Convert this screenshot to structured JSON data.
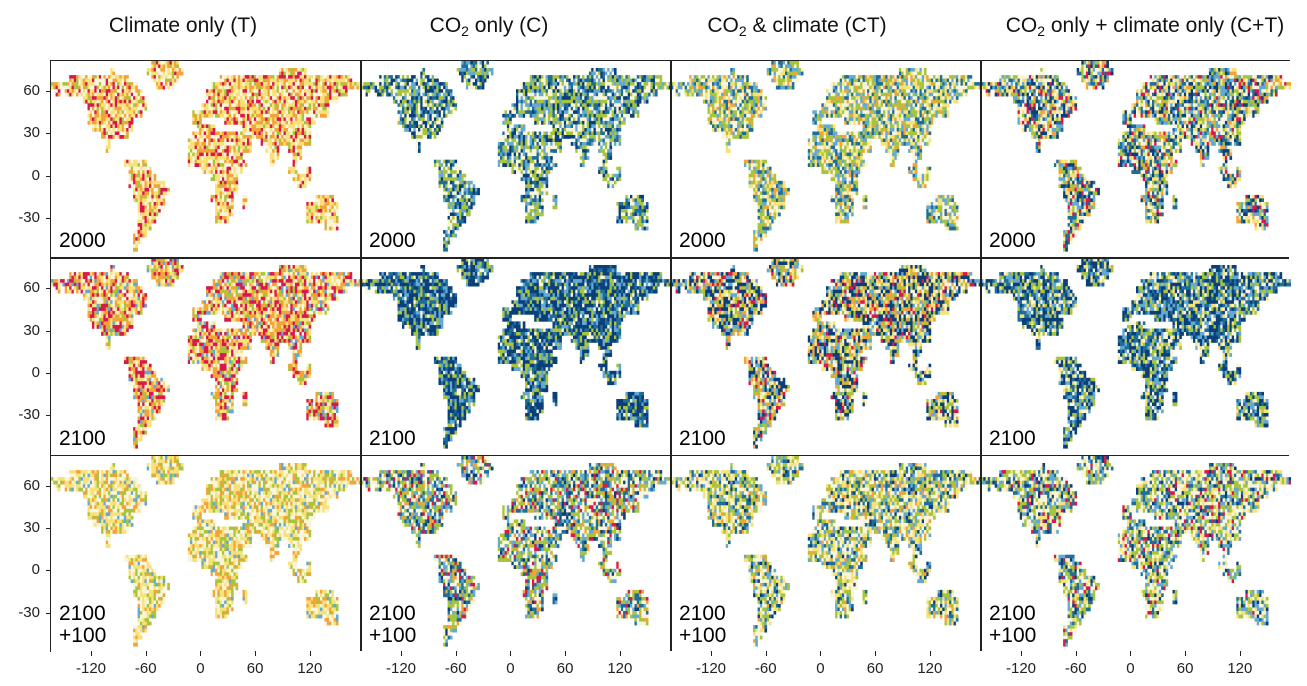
{
  "columns": [
    {
      "title_main": "Climate only  (T)",
      "title_sub": "",
      "title_rest": ""
    },
    {
      "title_main": "CO",
      "title_sub": "2",
      "title_rest": " only  (C)"
    },
    {
      "title_main": "CO",
      "title_sub": "2",
      "title_rest": " & climate  (CT)"
    },
    {
      "title_main": "CO",
      "title_sub": "2",
      "title_rest": " only + climate only  (C+T)"
    }
  ],
  "rows": [
    {
      "label": "2000"
    },
    {
      "label": "2100"
    },
    {
      "label": "2100\n+100"
    }
  ],
  "y_ticks": [
    "60",
    "30",
    "0",
    "-30"
  ],
  "x_ticks": [
    "-120",
    "-60",
    "0",
    "60",
    "120"
  ],
  "colors": {
    "strong_negative": "#d9184e",
    "negative": "#f2a33a",
    "weak_negative": "#f7e27a",
    "near_zero": "#f8f5dc",
    "weak_positive": "#a8c43c",
    "positive": "#63a9d4",
    "strong_positive": "#0b3f7a",
    "mid_positive": "#1f6d9a"
  },
  "panels": [
    [
      {
        "row": 0,
        "col": 0,
        "palette": [
          "near_zero",
          "weak_negative",
          "negative",
          "strong_negative",
          "weak_positive"
        ],
        "weights": [
          3,
          4,
          3,
          2,
          1
        ]
      },
      {
        "row": 0,
        "col": 1,
        "palette": [
          "near_zero",
          "weak_positive",
          "positive",
          "mid_positive",
          "strong_positive"
        ],
        "weights": [
          3,
          3,
          2,
          2,
          2
        ]
      },
      {
        "row": 0,
        "col": 2,
        "palette": [
          "near_zero",
          "weak_positive",
          "positive",
          "mid_positive",
          "weak_negative",
          "negative"
        ],
        "weights": [
          3,
          3,
          2,
          2,
          2,
          1
        ]
      },
      {
        "row": 0,
        "col": 3,
        "palette": [
          "near_zero",
          "weak_positive",
          "positive",
          "mid_positive",
          "strong_positive",
          "weak_negative",
          "negative",
          "strong_negative"
        ],
        "weights": [
          3,
          2,
          2,
          2,
          2,
          2,
          1,
          1
        ]
      }
    ],
    [
      {
        "row": 1,
        "col": 0,
        "palette": [
          "near_zero",
          "weak_negative",
          "negative",
          "strong_negative",
          "weak_positive",
          "positive"
        ],
        "weights": [
          2,
          3,
          3,
          3,
          1,
          1
        ]
      },
      {
        "row": 1,
        "col": 1,
        "palette": [
          "near_zero",
          "weak_positive",
          "positive",
          "strong_positive",
          "mid_positive"
        ],
        "weights": [
          1,
          2,
          2,
          5,
          2
        ]
      },
      {
        "row": 1,
        "col": 2,
        "palette": [
          "near_zero",
          "weak_positive",
          "positive",
          "strong_positive",
          "weak_negative",
          "negative",
          "strong_negative"
        ],
        "weights": [
          2,
          2,
          2,
          4,
          2,
          2,
          1
        ]
      },
      {
        "row": 1,
        "col": 3,
        "palette": [
          "near_zero",
          "weak_positive",
          "positive",
          "strong_positive",
          "mid_positive",
          "weak_negative"
        ],
        "weights": [
          2,
          2,
          2,
          4,
          2,
          1
        ]
      }
    ],
    [
      {
        "row": 2,
        "col": 0,
        "palette": [
          "near_zero",
          "weak_negative",
          "negative",
          "weak_positive",
          "positive"
        ],
        "weights": [
          4,
          4,
          2,
          2,
          1
        ]
      },
      {
        "row": 2,
        "col": 1,
        "palette": [
          "near_zero",
          "weak_positive",
          "positive",
          "mid_positive",
          "strong_positive",
          "negative",
          "strong_negative"
        ],
        "weights": [
          4,
          3,
          2,
          2,
          1,
          1,
          1
        ]
      },
      {
        "row": 2,
        "col": 2,
        "palette": [
          "near_zero",
          "weak_negative",
          "weak_positive",
          "positive",
          "mid_positive",
          "strong_positive",
          "negative"
        ],
        "weights": [
          4,
          3,
          3,
          2,
          2,
          1,
          1
        ]
      },
      {
        "row": 2,
        "col": 3,
        "palette": [
          "near_zero",
          "weak_negative",
          "weak_positive",
          "positive",
          "mid_positive",
          "strong_positive",
          "strong_negative"
        ],
        "weights": [
          4,
          2,
          3,
          2,
          2,
          1,
          1
        ]
      }
    ]
  ]
}
